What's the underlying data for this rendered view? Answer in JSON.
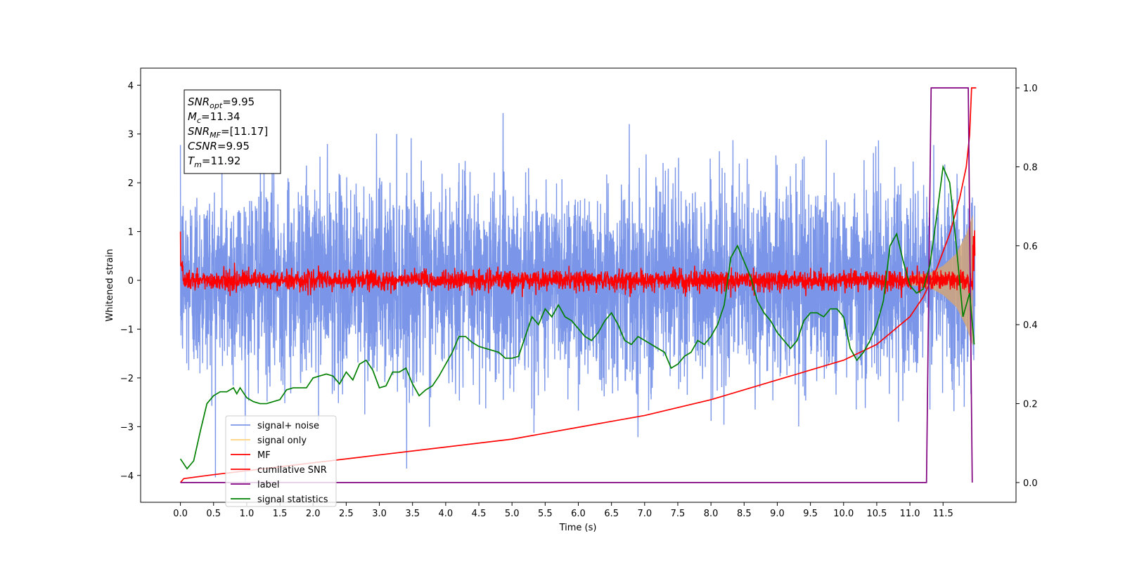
{
  "chart_data": {
    "type": "line",
    "xlabel": "Time (s)",
    "ylabel": "Whitened strain",
    "xlim": [
      -0.6,
      12.6
    ],
    "ylim": [
      -4.55,
      4.35
    ],
    "y2lim": [
      -0.05,
      1.05
    ],
    "x_ticks": [
      "0.0",
      "0.5",
      "1.0",
      "1.5",
      "2.0",
      "2.5",
      "3.0",
      "3.5",
      "4.0",
      "4.5",
      "5.0",
      "5.5",
      "6.0",
      "6.5",
      "7.0",
      "7.5",
      "8.0",
      "8.5",
      "9.0",
      "9.5",
      "10.0",
      "10.5",
      "11.0",
      "11.5"
    ],
    "y_ticks": [
      "4",
      "3",
      "2",
      "1",
      "0",
      "−1",
      "−2",
      "−3",
      "−4"
    ],
    "y2_ticks": [
      "1.0",
      "0.8",
      "0.6",
      "0.4",
      "0.2",
      "0.0"
    ],
    "annotation": [
      {
        "main": "SNR",
        "sub": "opt",
        "rest": "=9.95"
      },
      {
        "main": "M",
        "sub": "c",
        "rest": "=11.34"
      },
      {
        "main": "SNR",
        "sub": "MF",
        "rest": "=[11.17]"
      },
      {
        "main": "CSNR",
        "sub": "",
        "rest": "=9.95"
      },
      {
        "main": "T",
        "sub": "m",
        "rest": "=11.92"
      }
    ],
    "legend_position": "lower-left",
    "legend": [
      {
        "name": "signal+ noise",
        "color": "#7b96e8"
      },
      {
        "name": "signal only",
        "color": "#ffd27f"
      },
      {
        "name": "MF",
        "color": "#ff0000"
      },
      {
        "name": "cumilative SNR",
        "color": "#ff0000"
      },
      {
        "name": "label",
        "color": "#800080"
      },
      {
        "name": "signal statistics",
        "color": "#008000"
      }
    ],
    "series_signal_noise": {
      "color": "#7b96e8",
      "t_end": 11.98,
      "std": 1.0
    },
    "series_signal_only": {
      "color": "#d2a679",
      "envelope": [
        [
          11.0,
          0.1
        ],
        [
          11.3,
          0.15
        ],
        [
          11.5,
          0.3
        ],
        [
          11.7,
          0.55
        ],
        [
          11.85,
          0.95
        ],
        [
          11.95,
          1.35
        ]
      ]
    },
    "series_mf": {
      "color": "#ff0000",
      "t_end": 11.98,
      "std": 0.1,
      "start_value": 1.0
    },
    "series_cumulative_snr": {
      "color": "#ff0000",
      "axis": "right",
      "points": [
        [
          0.0,
          0.0
        ],
        [
          0.05,
          0.01
        ],
        [
          0.5,
          0.02
        ],
        [
          1.0,
          0.03
        ],
        [
          2.0,
          0.05
        ],
        [
          3.0,
          0.07
        ],
        [
          4.0,
          0.09
        ],
        [
          5.0,
          0.11
        ],
        [
          6.0,
          0.14
        ],
        [
          7.0,
          0.17
        ],
        [
          8.0,
          0.21
        ],
        [
          9.0,
          0.26
        ],
        [
          10.0,
          0.31
        ],
        [
          10.5,
          0.35
        ],
        [
          11.0,
          0.42
        ],
        [
          11.2,
          0.47
        ],
        [
          11.4,
          0.54
        ],
        [
          11.6,
          0.63
        ],
        [
          11.75,
          0.72
        ],
        [
          11.85,
          0.8
        ],
        [
          11.9,
          0.88
        ],
        [
          11.93,
          1.0
        ],
        [
          12.0,
          1.0
        ]
      ]
    },
    "series_label": {
      "color": "#800080",
      "axis": "right",
      "points": [
        [
          0.0,
          0.0
        ],
        [
          11.25,
          0.0
        ],
        [
          11.32,
          1.0
        ],
        [
          11.88,
          1.0
        ],
        [
          11.94,
          0.0
        ]
      ]
    },
    "series_signal_statistics": {
      "color": "#008000",
      "axis": "right",
      "points": [
        [
          0.0,
          0.06
        ],
        [
          0.1,
          0.035
        ],
        [
          0.2,
          0.055
        ],
        [
          0.3,
          0.13
        ],
        [
          0.4,
          0.2
        ],
        [
          0.5,
          0.22
        ],
        [
          0.6,
          0.23
        ],
        [
          0.7,
          0.23
        ],
        [
          0.8,
          0.24
        ],
        [
          0.85,
          0.225
        ],
        [
          0.9,
          0.24
        ],
        [
          1.0,
          0.215
        ],
        [
          1.1,
          0.205
        ],
        [
          1.2,
          0.2
        ],
        [
          1.3,
          0.2
        ],
        [
          1.4,
          0.205
        ],
        [
          1.5,
          0.21
        ],
        [
          1.6,
          0.235
        ],
        [
          1.7,
          0.24
        ],
        [
          1.8,
          0.24
        ],
        [
          1.9,
          0.24
        ],
        [
          2.0,
          0.265
        ],
        [
          2.1,
          0.27
        ],
        [
          2.2,
          0.275
        ],
        [
          2.3,
          0.27
        ],
        [
          2.4,
          0.25
        ],
        [
          2.5,
          0.28
        ],
        [
          2.6,
          0.26
        ],
        [
          2.7,
          0.3
        ],
        [
          2.8,
          0.31
        ],
        [
          2.9,
          0.285
        ],
        [
          3.0,
          0.24
        ],
        [
          3.1,
          0.245
        ],
        [
          3.2,
          0.28
        ],
        [
          3.3,
          0.28
        ],
        [
          3.4,
          0.29
        ],
        [
          3.5,
          0.25
        ],
        [
          3.6,
          0.22
        ],
        [
          3.7,
          0.235
        ],
        [
          3.8,
          0.245
        ],
        [
          3.9,
          0.27
        ],
        [
          4.0,
          0.3
        ],
        [
          4.1,
          0.33
        ],
        [
          4.2,
          0.37
        ],
        [
          4.3,
          0.37
        ],
        [
          4.4,
          0.355
        ],
        [
          4.5,
          0.345
        ],
        [
          4.6,
          0.34
        ],
        [
          4.7,
          0.335
        ],
        [
          4.8,
          0.33
        ],
        [
          4.9,
          0.315
        ],
        [
          5.0,
          0.315
        ],
        [
          5.1,
          0.32
        ],
        [
          5.2,
          0.37
        ],
        [
          5.3,
          0.42
        ],
        [
          5.4,
          0.4
        ],
        [
          5.5,
          0.44
        ],
        [
          5.6,
          0.42
        ],
        [
          5.7,
          0.45
        ],
        [
          5.8,
          0.42
        ],
        [
          5.9,
          0.41
        ],
        [
          6.0,
          0.39
        ],
        [
          6.1,
          0.37
        ],
        [
          6.2,
          0.36
        ],
        [
          6.3,
          0.38
        ],
        [
          6.4,
          0.41
        ],
        [
          6.5,
          0.43
        ],
        [
          6.6,
          0.4
        ],
        [
          6.7,
          0.36
        ],
        [
          6.8,
          0.35
        ],
        [
          6.9,
          0.37
        ],
        [
          7.0,
          0.36
        ],
        [
          7.1,
          0.35
        ],
        [
          7.2,
          0.34
        ],
        [
          7.3,
          0.33
        ],
        [
          7.4,
          0.29
        ],
        [
          7.5,
          0.3
        ],
        [
          7.6,
          0.32
        ],
        [
          7.7,
          0.33
        ],
        [
          7.8,
          0.36
        ],
        [
          7.9,
          0.35
        ],
        [
          8.0,
          0.37
        ],
        [
          8.1,
          0.4
        ],
        [
          8.2,
          0.45
        ],
        [
          8.3,
          0.57
        ],
        [
          8.4,
          0.6
        ],
        [
          8.5,
          0.56
        ],
        [
          8.6,
          0.52
        ],
        [
          8.7,
          0.46
        ],
        [
          8.8,
          0.43
        ],
        [
          8.9,
          0.41
        ],
        [
          9.0,
          0.38
        ],
        [
          9.1,
          0.36
        ],
        [
          9.2,
          0.34
        ],
        [
          9.3,
          0.36
        ],
        [
          9.4,
          0.41
        ],
        [
          9.5,
          0.43
        ],
        [
          9.6,
          0.43
        ],
        [
          9.7,
          0.42
        ],
        [
          9.8,
          0.44
        ],
        [
          9.9,
          0.44
        ],
        [
          10.0,
          0.42
        ],
        [
          10.1,
          0.34
        ],
        [
          10.2,
          0.31
        ],
        [
          10.3,
          0.33
        ],
        [
          10.4,
          0.36
        ],
        [
          10.5,
          0.4
        ],
        [
          10.6,
          0.46
        ],
        [
          10.7,
          0.6
        ],
        [
          10.8,
          0.63
        ],
        [
          10.9,
          0.56
        ],
        [
          11.0,
          0.5
        ],
        [
          11.1,
          0.48
        ],
        [
          11.2,
          0.49
        ],
        [
          11.3,
          0.55
        ],
        [
          11.4,
          0.67
        ],
        [
          11.5,
          0.8
        ],
        [
          11.6,
          0.76
        ],
        [
          11.7,
          0.6
        ],
        [
          11.8,
          0.42
        ],
        [
          11.9,
          0.48
        ],
        [
          11.97,
          0.35
        ]
      ]
    }
  }
}
